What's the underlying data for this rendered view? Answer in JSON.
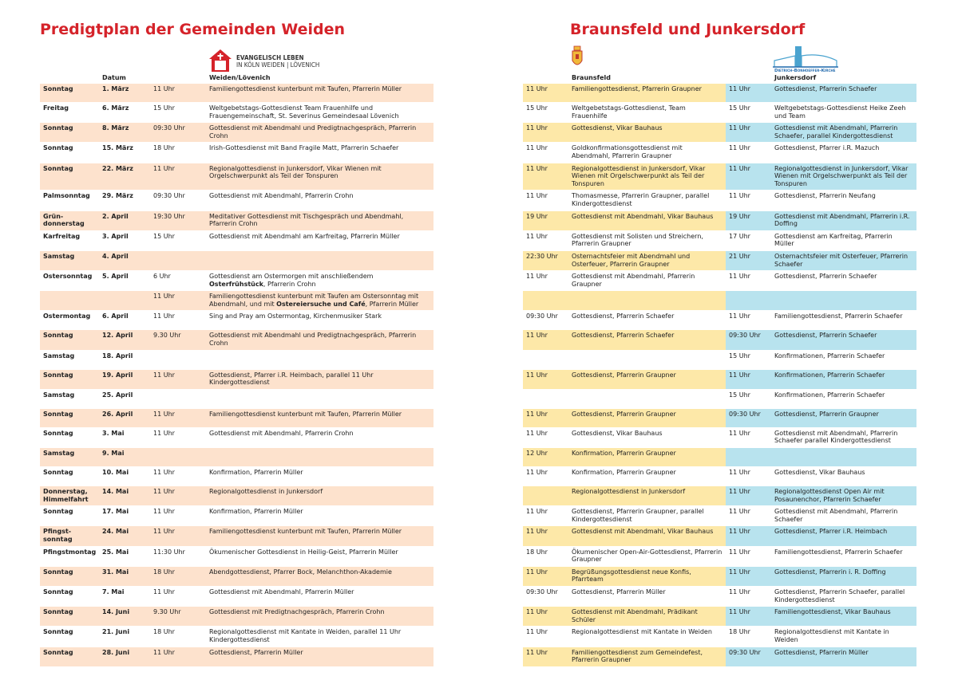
{
  "header": {
    "title_left": "Predigtplan der Gemeinden Weiden",
    "title_right": "Braunsfeld und Junkersdorf",
    "logo_left": [
      "EVANGELISCH LEBEN",
      "IN KÖLN WEIDEN | LÖVENICH"
    ],
    "logo_right": "Dietrich-Bonhoeffer-Kirche"
  },
  "columns": {
    "date": "Datum",
    "weiden": "Weiden/Lövenich",
    "braunsfeld": "Braunsfeld",
    "junkersdorf": "Junkersdorf"
  },
  "rows": [
    {
      "day": "Sonntag",
      "date": "1. März",
      "time": "11 Uhr",
      "event": "Familiengottesdienst kunterbunt mit Taufen, Pfarrerin Müller",
      "braunsfeld": {
        "time": "11 Uhr",
        "event": "Familiengottesdienst, Pfarrerin Graupner"
      },
      "junkersdorf": {
        "time": "11 Uhr",
        "event": "Gottesdienst, Pfarrerin Schaefer"
      }
    },
    {
      "day": "Freitag",
      "date": "6. März",
      "time": "15 Uhr",
      "event": "Weltgebetstags-Gottesdienst Team Frauenhilfe und Frauengemeinschaft, St. Severinus Gemeindesaal Lövenich",
      "braunsfeld": {
        "time": "15 Uhr",
        "event": "Weltgebetstags-Gottesdienst, Team Frauenhilfe"
      },
      "junkersdorf": {
        "time": "15 Uhr",
        "event": "Weltgebetstags-Gottesdienst Heike Zeeh und Team"
      }
    },
    {
      "day": "Sonntag",
      "date": "8. März",
      "time": "09:30 Uhr",
      "event": "Gottesdienst mit Abendmahl und Predigtnachgespräch, Pfarrerin Crohn",
      "braunsfeld": {
        "time": "11 Uhr",
        "event": "Gottesdienst, Vikar Bauhaus"
      },
      "junkersdorf": {
        "time": "11 Uhr",
        "event": "Gottesdienst mit Abendmahl, Pfarrerin Schaefer, parallel Kindergottesdienst"
      }
    },
    {
      "day": "Sonntag",
      "date": "15. März",
      "time": "18 Uhr",
      "event": "Irish-Gottesdienst mit Band Fragile Matt, Pfarrerin Schaefer",
      "braunsfeld": {
        "time": "11 Uhr",
        "event": "Goldkonfirmationsgottesdienst mit Abendmahl, Pfarrerin Graupner"
      },
      "junkersdorf": {
        "time": "11 Uhr",
        "event": "Gottesdienst, Pfarrer i.R. Mazuch"
      }
    },
    {
      "day": "Sonntag",
      "date": "22. März",
      "time": "11 Uhr",
      "event": "Regionalgottesdienst in Junkersdorf, Vikar Wienen mit Orgelschwerpunkt als Teil der Tonspuren",
      "braunsfeld": {
        "time": "11 Uhr",
        "event": "Regionalgottesdienst in Junkersdorf, Vikar Wienen mit Orgelschwerpunkt als Teil der Tonspuren"
      },
      "junkersdorf": {
        "time": "11 Uhr",
        "event": "Regionalgottesdienst in Junkersdorf, Vikar Wienen mit Orgelschwerpunkt als Teil der Tonspuren"
      }
    },
    {
      "day": "Palmsonntag",
      "date": "29. März",
      "time": "09:30 Uhr",
      "event": "Gottesdienst mit Abendmahl, Pfarrerin Crohn",
      "braunsfeld": {
        "time": "11 Uhr",
        "event": "Thomasmesse, Pfarrerin Graupner, parallel Kindergottesdienst"
      },
      "junkersdorf": {
        "time": "11 Uhr",
        "event": "Gottesdienst, Pfarrerin Neufang"
      }
    },
    {
      "day": "Grün-donnerstag",
      "date": "2. April",
      "time": "19:30 Uhr",
      "event": "Meditativer Gottesdienst mit Tischgespräch und Abendmahl, Pfarrerin Crohn",
      "braunsfeld": {
        "time": "19 Uhr",
        "event": "Gottesdienst mit Abendmahl, Vikar Bauhaus"
      },
      "junkersdorf": {
        "time": "19 Uhr",
        "event": "Gottesdienst mit Abendmahl, Pfarrerin i.R. Doffing"
      }
    },
    {
      "day": "Karfreitag",
      "date": "3. April",
      "time": "15 Uhr",
      "event": "Gottesdienst mit Abendmahl am Karfreitag, Pfarrerin Müller",
      "braunsfeld": {
        "time": "11 Uhr",
        "event": "Gottesdienst mit Solisten und Streichern, Pfarrerin Graupner"
      },
      "junkersdorf": {
        "time": "17 Uhr",
        "event": "Gottesdienst am Karfreitag, Pfarrerin Müller"
      }
    },
    {
      "day": "Samstag",
      "date": "4. April",
      "braunsfeld": {
        "time": "22:30 Uhr",
        "event": "Osternachtsfeier mit Abendmahl und Osterfeuer, Pfarrerin Graupner"
      },
      "junkersdorf": {
        "time": "21 Uhr",
        "event": "Osternachtsfeier mit Osterfeuer, Pfarrerin Schaefer"
      }
    },
    {
      "day": "Ostersonntag",
      "date": "5. April",
      "time": "6 Uhr",
      "event": {
        "parts": [
          "Gottesdienst am Ostermorgen mit anschließendem ",
          "Osterfrühstück",
          ", Pfarrerin Crohn"
        ],
        "bold": [
          1
        ]
      },
      "braunsfeld": {
        "time": "11 Uhr",
        "event": "Gottesdienst mit Abendmahl, Pfarrerin Graupner"
      },
      "junkersdorf": {
        "time": "11 Uhr",
        "event": "Gottesdienst, Pfarrerin Schaefer"
      }
    },
    {
      "time": "11 Uhr",
      "event": {
        "parts": [
          "Familiengottesdienst kunterbunt mit Taufen am Ostersonntag mit Abendmahl, und mit ",
          "Ostereiersuche und Café",
          ", Pfarrerin Müller"
        ],
        "bold": [
          1
        ]
      }
    },
    {
      "day": "Ostermontag",
      "date": "6. April",
      "time": "11 Uhr",
      "event": "Sing and Pray am Ostermontag, Kirchenmusiker Stark",
      "braunsfeld": {
        "time": "09:30 Uhr",
        "event": "Gottesdienst, Pfarrerin Schaefer"
      },
      "junkersdorf": {
        "time": "11 Uhr",
        "event": "Familiengottesdienst, Pfarrerin Schaefer"
      }
    },
    {
      "day": "Sonntag",
      "date": "12. April",
      "time": "9.30 Uhr",
      "event": "Gottesdienst mit Abendmahl und Predigtnachgespräch, Pfarrerin Crohn",
      "braunsfeld": {
        "time": "11 Uhr",
        "event": "Gottesdienst, Pfarrerin Schaefer"
      },
      "junkersdorf": {
        "time": "09:30 Uhr",
        "event": "Gottesdienst, Pfarrerin Schaefer"
      }
    },
    {
      "day": "Samstag",
      "date": "18. April",
      "junkersdorf": {
        "time": "15 Uhr",
        "event": "Konfirmationen, Pfarrerin Schaefer"
      }
    },
    {
      "day": "Sonntag",
      "date": "19. April",
      "time": "11 Uhr",
      "event": "Gottesdienst, Pfarrer i.R. Heimbach, parallel 11 Uhr Kindergottesdienst",
      "braunsfeld": {
        "time": "11 Uhr",
        "event": "Gottesdienst, Pfarrerin Graupner"
      },
      "junkersdorf": {
        "time": "11 Uhr",
        "event": "Konfirmationen, Pfarrerin Schaefer"
      }
    },
    {
      "day": "Samstag",
      "date": "25. April",
      "junkersdorf": {
        "time": "15 Uhr",
        "event": "Konfirmationen, Pfarrerin Schaefer"
      }
    },
    {
      "day": "Sonntag",
      "date": "26. April",
      "time": "11 Uhr",
      "event": "Familiengottesdienst kunterbunt mit Taufen, Pfarrerin Müller",
      "braunsfeld": {
        "time": "11 Uhr",
        "event": "Gottesdienst, Pfarrerin Graupner"
      },
      "junkersdorf": {
        "time": "09:30 Uhr",
        "event": "Gottesdienst, Pfarrerin Graupner"
      }
    },
    {
      "day": "Sonntag",
      "date": "3. Mai",
      "time": "11 Uhr",
      "event": "Gottesdienst mit Abendmahl, Pfarrerin Crohn",
      "braunsfeld": {
        "time": "11 Uhr",
        "event": "Gottesdienst, Vikar Bauhaus"
      },
      "junkersdorf": {
        "time": "11 Uhr",
        "event": "Gottesdienst mit Abendmahl, Pfarrerin Schaefer parallel Kindergottesdienst"
      }
    },
    {
      "day": "Samstag",
      "date": "9. Mai",
      "braunsfeld": {
        "time": "12 Uhr",
        "event": "Konfirmation, Pfarrerin Graupner"
      }
    },
    {
      "day": "Sonntag",
      "date": "10. Mai",
      "time": "11 Uhr",
      "event": "Konfirmation, Pfarrerin Müller",
      "braunsfeld": {
        "time": "11 Uhr",
        "event": "Konfirmation, Pfarrerin Graupner"
      },
      "junkersdorf": {
        "time": "11 Uhr",
        "event": "Gottesdienst, Vikar Bauhaus"
      }
    },
    {
      "day": "Donnerstag, Himmelfahrt",
      "date": "14. Mai",
      "time": "11 Uhr",
      "event": "Regionalgottesdienst in Junkersdorf",
      "braunsfeld": {
        "event": "Regionalgottesdienst in Junkersdorf"
      },
      "junkersdorf": {
        "time": "11 Uhr",
        "event": "Regionalgottesdienst Open Air mit Posaunenchor, Pfarrerin Schaefer"
      }
    },
    {
      "day": "Sonntag",
      "date": "17. Mai",
      "time": "11 Uhr",
      "event": "Konfirmation, Pfarrerin Müller",
      "braunsfeld": {
        "time": "11 Uhr",
        "event": "Gottesdienst, Pfarrerin Graupner, parallel Kindergottesdienst"
      },
      "junkersdorf": {
        "time": "11 Uhr",
        "event": "Gottesdienst mit Abendmahl, Pfarrerin Schaefer"
      }
    },
    {
      "day": "Pfingst-sonntag",
      "date": "24. Mai",
      "time": "11 Uhr",
      "event": "Familiengottesdienst kunterbunt mit Taufen, Pfarrerin Müller",
      "braunsfeld": {
        "time": "11 Uhr",
        "event": "Gottesdienst mit Abendmahl, Vikar Bauhaus"
      },
      "junkersdorf": {
        "time": "11 Uhr",
        "event": "Gottesdienst, Pfarrer i.R. Heimbach"
      }
    },
    {
      "day": "Pfingstmontag",
      "date": "25. Mai",
      "time": "11:30 Uhr",
      "event": "Ökumenischer Gottesdienst in Heilig-Geist, Pfarrerin Müller",
      "braunsfeld": {
        "time": "18 Uhr",
        "event": "Ökumenischer Open-Air-Gottesdienst, Pfarrerin Graupner"
      },
      "junkersdorf": {
        "time": "11 Uhr",
        "event": "Familiengottesdienst, Pfarrerin Schaefer"
      }
    },
    {
      "day": "Sonntag",
      "date": "31. Mai",
      "time": "18 Uhr",
      "event": "Abendgottesdienst, Pfarrer Bock, Melanchthon-Akademie",
      "braunsfeld": {
        "time": "11 Uhr",
        "event": "Begrüßungsgottesdienst neue Konfis, Pfarrteam"
      },
      "junkersdorf": {
        "time": "11 Uhr",
        "event": "Gottesdienst, Pfarrerin i. R. Doffing"
      }
    },
    {
      "day": "Sonntag",
      "date": "7. Mai",
      "time": "11 Uhr",
      "event": "Gottesdienst mit Abendmahl, Pfarrerin Müller",
      "braunsfeld": {
        "time": "09:30 Uhr",
        "event": "Gottesdienst, Pfarrerin Müller"
      },
      "junkersdorf": {
        "time": "11 Uhr",
        "event": "Gottesdienst, Pfarrerin Schaefer, parallel Kindergottesdienst"
      }
    },
    {
      "day": "Sonntag",
      "date": "14. Juni",
      "time": "9.30 Uhr",
      "event": "Gottesdienst mit Predigtnachgespräch, Pfarrerin Crohn",
      "braunsfeld": {
        "time": "11 Uhr",
        "event": "Gottesdienst mit Abendmahl, Prädikant Schüler"
      },
      "junkersdorf": {
        "time": "11 Uhr",
        "event": "Familiengottesdienst, Vikar Bauhaus"
      }
    },
    {
      "day": "Sonntag",
      "date": "21. Juni",
      "time": "18 Uhr",
      "event": "Regionalgottesdienst mit Kantate in Weiden, parallel 11 Uhr Kindergottesdienst",
      "braunsfeld": {
        "time": "11 Uhr",
        "event": "Regionalgottesdienst mit Kantate in Weiden"
      },
      "junkersdorf": {
        "time": "18 Uhr",
        "event": "Regionalgottesdienst mit Kantate in Weiden"
      }
    },
    {
      "day": "Sonntag",
      "date": "28. Juni",
      "time": "11 Uhr",
      "event": "Gottesdienst, Pfarrerin Müller",
      "braunsfeld": {
        "time": "11 Uhr",
        "event": "Familiengottesdienst zum Gemeindefest, Pfarrerin Graupner"
      },
      "junkersdorf": {
        "time": "09:30 Uhr",
        "event": "Gottesdienst, Pfarrerin Müller"
      }
    }
  ]
}
